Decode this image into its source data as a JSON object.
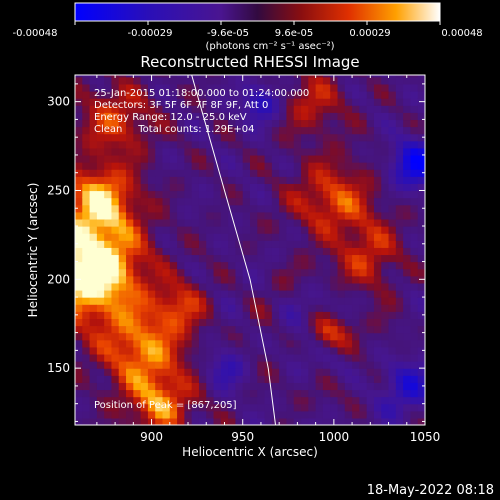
{
  "chart_data": {
    "type": "heatmap",
    "title": "Reconstructed RHESSI Image",
    "xlabel": "Heliocentric X (arcsec)",
    "ylabel": "Heliocentric Y (arcsec)",
    "xlim": [
      858,
      1050
    ],
    "ylim": [
      118,
      315
    ],
    "xticks": [
      900,
      950,
      1000,
      1050
    ],
    "yticks": [
      150,
      200,
      250,
      300
    ],
    "colorbar": {
      "colormap": "blue-purple-red-yellow-white",
      "range": [
        -0.00048,
        0.00048
      ],
      "ticks": [
        "-0.00048",
        "-0.00029",
        "-9.6e-05",
        "9.6e-05",
        "0.00029",
        "0.00048"
      ],
      "label": "(photons cm⁻² s⁻¹ asec⁻²)"
    },
    "annotations": [
      "25-Jan-2015 01:18:00.000 to 01:24:00.000",
      "Detectors: 3F 5F 6F 7F 8F 9F, Att 0",
      "Energy Range: 12.0 - 25.0 keV",
      "Clean     Total counts: 1.29E+04",
      "Position of Peak = [867,205]"
    ],
    "peak": [
      867,
      205
    ],
    "grid": false,
    "limb_curve": [
      [
        922,
        315
      ],
      [
        940,
        250
      ],
      [
        954,
        200
      ],
      [
        964,
        150
      ],
      [
        968,
        118
      ]
    ]
  },
  "footer": {
    "timestamp": "18-May-2022 08:18"
  }
}
